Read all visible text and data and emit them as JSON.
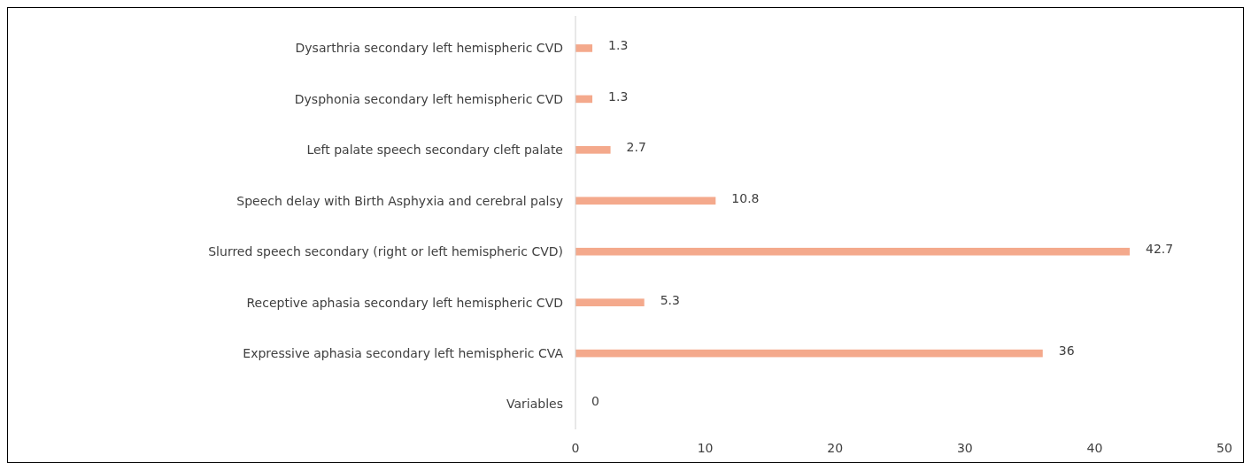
{
  "chart_data": {
    "type": "bar",
    "orientation": "horizontal",
    "categories": [
      "Dysarthria secondary left hemispheric CVD",
      "Dysphonia secondary left hemispheric CVD",
      "Left palate speech secondary cleft palate",
      "Speech delay with Birth Asphyxia and cerebral palsy ",
      "Slurred speech secondary (right or left hemispheric CVD)",
      "Receptive aphasia secondary left hemispheric CVD",
      "Expressive aphasia secondary left hemispheric CVA",
      "Variables"
    ],
    "values": [
      1.3,
      1.3,
      2.7,
      10.8,
      42.7,
      5.3,
      36,
      0
    ],
    "color": "#f4a98c",
    "xlim": [
      0,
      50
    ],
    "xticks": [
      0,
      10,
      20,
      30,
      40,
      50
    ],
    "data_labels": true
  }
}
